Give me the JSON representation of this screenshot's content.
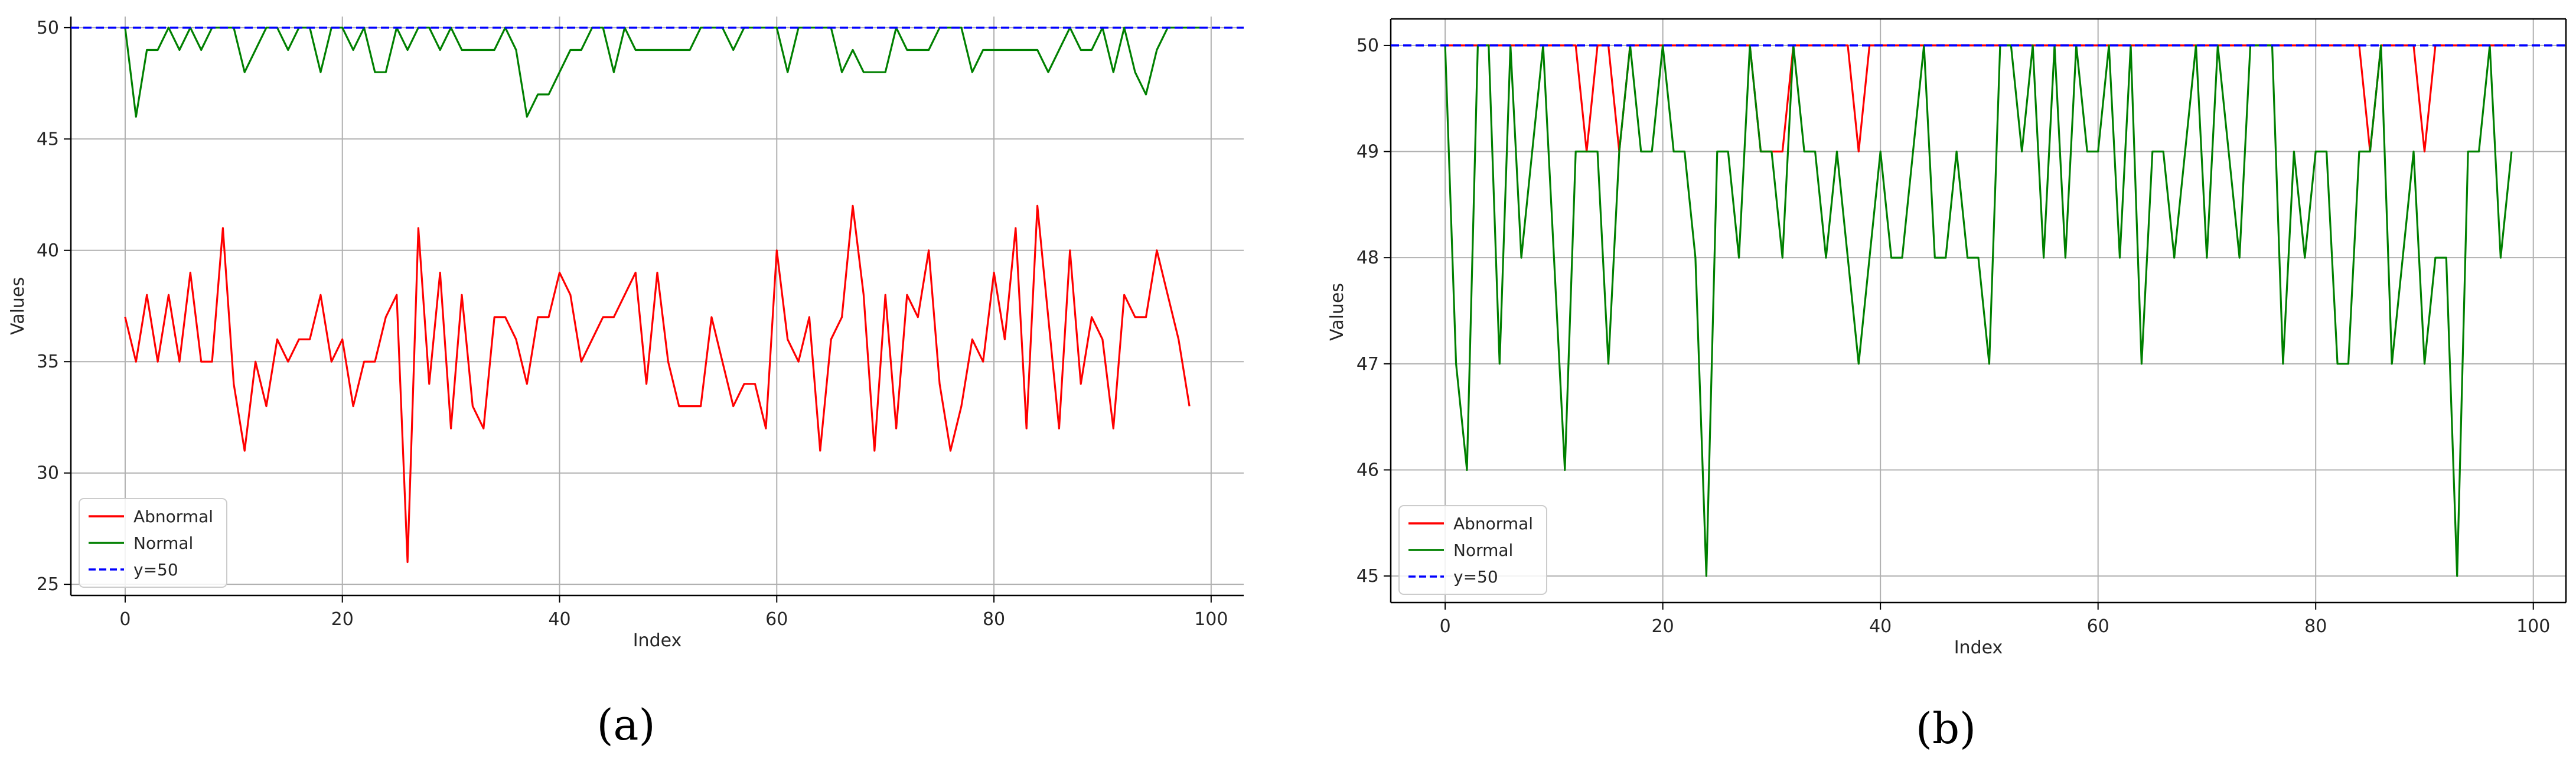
{
  "chart_data": [
    {
      "panel": "(a)",
      "type": "line",
      "xlabel": "Index",
      "ylabel": "Values",
      "xlim": [
        -5,
        103
      ],
      "ylim": [
        24.5,
        50.5
      ],
      "xticks": [
        0,
        20,
        40,
        60,
        80,
        100
      ],
      "yticks": [
        25,
        30,
        35,
        40,
        45,
        50
      ],
      "grid": true,
      "legend_position": "lower-left",
      "hline": {
        "label": "y=50",
        "value": 50,
        "color": "#0000ff"
      },
      "series": [
        {
          "name": "Abnormal",
          "color": "#ff0000",
          "values": [
            37,
            35,
            38,
            35,
            38,
            35,
            39,
            35,
            35,
            41,
            34,
            31,
            35,
            33,
            36,
            35,
            36,
            36,
            38,
            35,
            36,
            33,
            35,
            35,
            37,
            38,
            26,
            41,
            34,
            39,
            32,
            38,
            33,
            32,
            37,
            37,
            36,
            34,
            37,
            37,
            39,
            38,
            35,
            36,
            37,
            37,
            38,
            39,
            34,
            39,
            35,
            33,
            33,
            33,
            37,
            35,
            33,
            34,
            34,
            32,
            40,
            36,
            35,
            37,
            31,
            36,
            37,
            42,
            38,
            31,
            38,
            32,
            38,
            37,
            40,
            34,
            31,
            33,
            36,
            35,
            39,
            36,
            41,
            32,
            42,
            37,
            32,
            40,
            34,
            37,
            36,
            32,
            38,
            37,
            37,
            40,
            38,
            36,
            33
          ]
        },
        {
          "name": "Normal",
          "color": "#008000",
          "values": [
            50,
            46,
            49,
            49,
            50,
            49,
            50,
            49,
            50,
            50,
            50,
            48,
            49,
            50,
            50,
            49,
            50,
            50,
            48,
            50,
            50,
            49,
            50,
            48,
            48,
            50,
            49,
            50,
            50,
            49,
            50,
            49,
            49,
            49,
            49,
            50,
            49,
            46,
            47,
            47,
            48,
            49,
            49,
            50,
            50,
            48,
            50,
            49,
            49,
            49,
            49,
            49,
            49,
            50,
            50,
            50,
            49,
            50,
            50,
            50,
            50,
            48,
            50,
            50,
            50,
            50,
            48,
            49,
            48,
            48,
            48,
            50,
            49,
            49,
            49,
            50,
            50,
            50,
            48,
            49,
            49,
            49,
            49,
            49,
            49,
            48,
            49,
            50,
            49,
            49,
            50,
            48,
            50,
            48,
            47,
            49,
            50,
            50,
            50,
            50
          ]
        }
      ]
    },
    {
      "panel": "(b)",
      "type": "line",
      "xlabel": "Index",
      "ylabel": "Values",
      "xlim": [
        -5,
        103
      ],
      "ylim": [
        44.75,
        50.25
      ],
      "xticks": [
        0,
        20,
        40,
        60,
        80,
        100
      ],
      "yticks": [
        45,
        46,
        47,
        48,
        49,
        50
      ],
      "grid": true,
      "legend_position": "lower-left",
      "hline": {
        "label": "y=50",
        "value": 50,
        "color": "#0000ff"
      },
      "series": [
        {
          "name": "Abnormal",
          "color": "#ff0000",
          "values": [
            50,
            50,
            50,
            50,
            50,
            50,
            50,
            50,
            50,
            50,
            50,
            50,
            50,
            49,
            50,
            50,
            49,
            50,
            50,
            50,
            50,
            50,
            50,
            50,
            50,
            50,
            50,
            50,
            50,
            49,
            49,
            49,
            50,
            50,
            50,
            50,
            50,
            50,
            49,
            50,
            50,
            50,
            50,
            50,
            50,
            50,
            50,
            50,
            50,
            50,
            50,
            50,
            50,
            50,
            50,
            50,
            50,
            50,
            50,
            50,
            50,
            50,
            50,
            50,
            50,
            50,
            50,
            50,
            50,
            50,
            50,
            50,
            50,
            50,
            50,
            50,
            50,
            50,
            50,
            50,
            50,
            50,
            50,
            50,
            50,
            49,
            50,
            50,
            50,
            50,
            49,
            50,
            50,
            50,
            50,
            50,
            50,
            50,
            50
          ]
        },
        {
          "name": "Normal",
          "color": "#008000",
          "values": [
            50,
            47,
            46,
            50,
            50,
            47,
            50,
            48,
            49,
            50,
            48,
            46,
            49,
            49,
            49,
            47,
            49,
            50,
            49,
            49,
            50,
            49,
            49,
            48,
            45,
            49,
            49,
            48,
            50,
            49,
            49,
            48,
            50,
            49,
            49,
            48,
            49,
            48,
            47,
            48,
            49,
            48,
            48,
            49,
            50,
            48,
            48,
            49,
            48,
            48,
            47,
            50,
            50,
            49,
            50,
            48,
            50,
            48,
            50,
            49,
            49,
            50,
            48,
            50,
            47,
            49,
            49,
            48,
            49,
            50,
            48,
            50,
            49,
            48,
            50,
            50,
            50,
            47,
            49,
            48,
            49,
            49,
            47,
            47,
            49,
            49,
            50,
            47,
            48,
            49,
            47,
            48,
            48,
            45,
            49,
            49,
            50,
            48,
            49
          ]
        }
      ]
    }
  ],
  "captions": [
    "(a)",
    "(b)"
  ]
}
